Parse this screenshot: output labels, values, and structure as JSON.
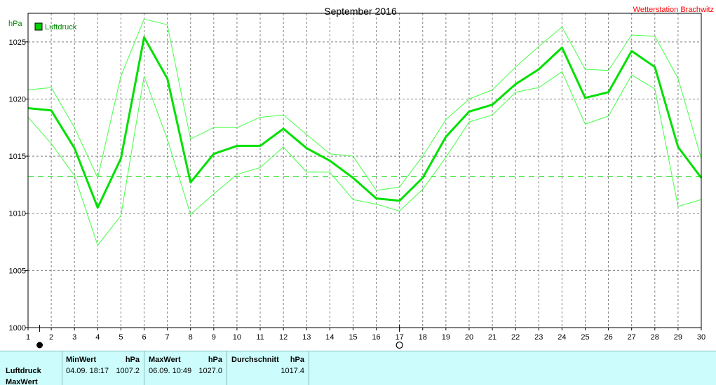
{
  "header": {
    "unit": "hPa",
    "station": "Wetterstation Brachwitz",
    "title_color": "#000000",
    "station_color": "#ff0000"
  },
  "chart_data": {
    "type": "line",
    "title": "September 2016",
    "ylabel": "hPa",
    "xlabel": "",
    "x": [
      1,
      2,
      3,
      4,
      5,
      6,
      7,
      8,
      9,
      10,
      11,
      12,
      13,
      14,
      15,
      16,
      17,
      18,
      19,
      20,
      21,
      22,
      23,
      24,
      25,
      26,
      27,
      28,
      29,
      30
    ],
    "xlim": [
      1,
      30
    ],
    "ylim": [
      1000,
      1027.5
    ],
    "yticks": [
      1000,
      1005,
      1010,
      1015,
      1020,
      1025
    ],
    "grid": true,
    "legend": {
      "placement": "top-left",
      "entries": [
        "Luftdruck"
      ]
    },
    "series": [
      {
        "name": "Luftdruck",
        "role": "mean",
        "color": "#00e000",
        "values": [
          1019.2,
          1019.0,
          1015.7,
          1010.5,
          1014.8,
          1025.4,
          1021.8,
          1012.7,
          1015.2,
          1015.9,
          1015.9,
          1017.4,
          1015.7,
          1014.6,
          1013.1,
          1011.3,
          1011.1,
          1013.1,
          1016.7,
          1018.9,
          1019.5,
          1021.3,
          1022.6,
          1024.5,
          1020.1,
          1020.6,
          1024.2,
          1022.8,
          1015.8,
          1013.1
        ]
      },
      {
        "role": "max",
        "color": "#44ff44",
        "values": [
          1020.8,
          1021.0,
          1017.5,
          1013.1,
          1022.0,
          1027.0,
          1026.5,
          1016.5,
          1017.5,
          1017.5,
          1018.4,
          1018.6,
          1016.9,
          1015.2,
          1015.0,
          1012.0,
          1012.3,
          1015.0,
          1018.2,
          1020.0,
          1020.8,
          1022.8,
          1024.6,
          1026.3,
          1022.6,
          1022.5,
          1025.6,
          1025.5,
          1021.8,
          1014.8
        ]
      },
      {
        "role": "min",
        "color": "#44ff44",
        "values": [
          1018.4,
          1016.1,
          1013.3,
          1007.2,
          1009.8,
          1022.0,
          1016.5,
          1009.9,
          1011.7,
          1013.4,
          1014.0,
          1015.8,
          1013.6,
          1013.6,
          1011.2,
          1010.8,
          1010.2,
          1012.1,
          1014.9,
          1018.0,
          1018.6,
          1020.6,
          1021.0,
          1022.4,
          1017.8,
          1018.5,
          1022.1,
          1020.9,
          1010.6,
          1011.2
        ]
      }
    ],
    "reference_line": {
      "value": 1013.2,
      "color": "#22dd22",
      "style": "dashed"
    }
  },
  "markers": {
    "full_moon_day": 1.5,
    "new_moon_day": 17
  },
  "stats": {
    "min_header": "MinWert",
    "max_header": "MaxWert",
    "avg_header": "Durchschnitt",
    "unit": "hPa",
    "rows": [
      {
        "label": "Luftdruck",
        "min_time": "04.09.  18:17",
        "min_value": "1007.2",
        "max_time": "06.09.  10:49",
        "max_value": "1027.0",
        "avg_value": "1017.4"
      },
      {
        "label": "MaxWert"
      }
    ]
  }
}
